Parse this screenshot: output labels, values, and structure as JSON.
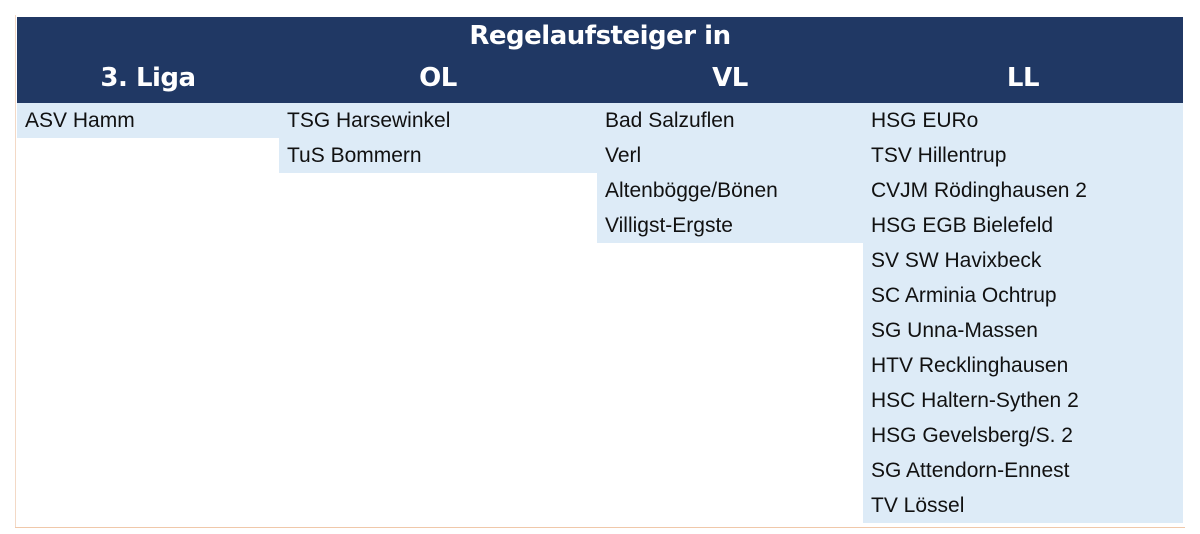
{
  "title": "Regelaufsteiger in",
  "colors": {
    "header_bg": "#203864",
    "cell_bg": "#DDEBF7"
  },
  "columns": [
    {
      "header": "3. Liga",
      "teams": [
        "ASV Hamm"
      ]
    },
    {
      "header": "OL",
      "teams": [
        "TSG Harsewinkel",
        "TuS Bommern"
      ]
    },
    {
      "header": "VL",
      "teams": [
        "Bad Salzuflen",
        "Verl",
        "Altenbögge/Bönen",
        "Villigst-Ergste"
      ]
    },
    {
      "header": "LL",
      "teams": [
        "HSG EURo",
        "TSV Hillentrup",
        "CVJM Rödinghausen 2",
        "HSG EGB Bielefeld",
        "SV SW Havixbeck",
        "SC Arminia Ochtrup",
        "SG Unna-Massen",
        "HTV Recklinghausen",
        "HSC Haltern-Sythen 2",
        "HSG Gevelsberg/S. 2",
        "SG Attendorn-Ennest",
        "TV Lössel"
      ]
    }
  ]
}
